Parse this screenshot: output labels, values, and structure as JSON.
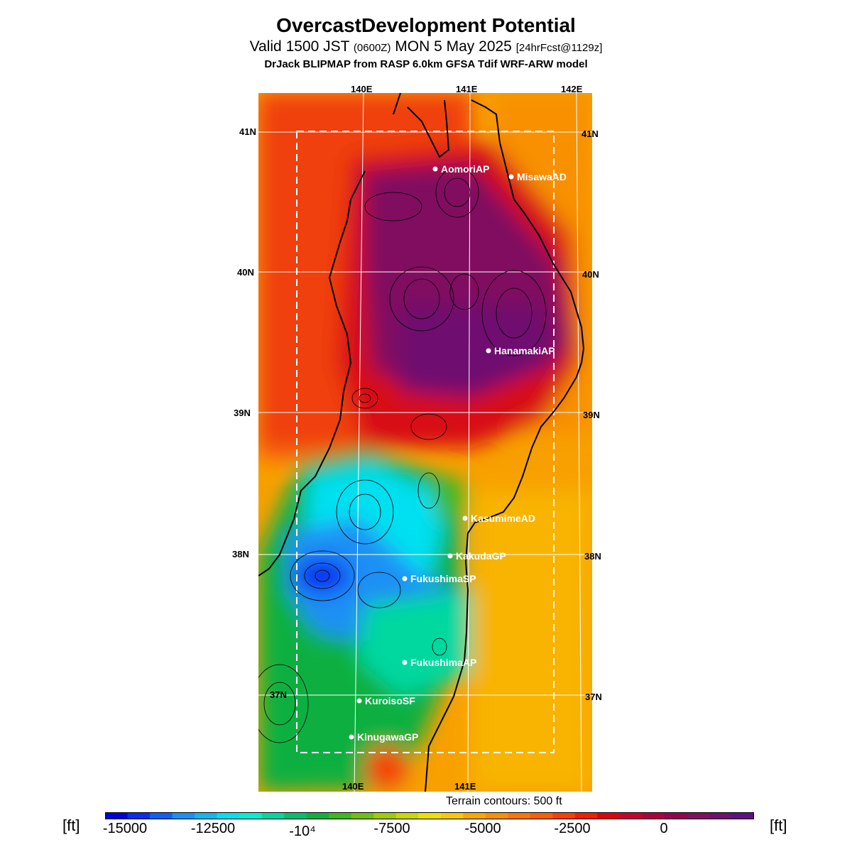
{
  "title": "OvercastDevelopment Potential",
  "subtitle_valid": "Valid 1500 JST",
  "subtitle_zulu": "(0600Z)",
  "subtitle_date": "MON 5 May 2025",
  "subtitle_fcst": "[24hrFcst@1129z]",
  "model_line": "DrJack BLIPMAP from RASP 6.0km GFSA Tdif WRF-ARW model",
  "axis": {
    "top": [
      "140E",
      "141E",
      "142E"
    ],
    "bottom": [
      "140E",
      "141E"
    ],
    "left": [
      "41N",
      "40N",
      "39N",
      "38N",
      "37N"
    ],
    "right": [
      "41N",
      "40N",
      "39N",
      "38N",
      "37N"
    ]
  },
  "stations": [
    {
      "name": "AomoriAP"
    },
    {
      "name": "MisawaAD"
    },
    {
      "name": "HanamakiAP"
    },
    {
      "name": "KasumimeAD"
    },
    {
      "name": "KakudaGP"
    },
    {
      "name": "FukushimaSP"
    },
    {
      "name": "FukushimaAP"
    },
    {
      "name": "KuroisoSF"
    },
    {
      "name": "KinugawaGP"
    }
  ],
  "terrain_note": "Terrain contours: 500 ft",
  "colorbar": {
    "unit": "[ft]",
    "labels": [
      "-15000",
      "-12500",
      "-10⁴",
      "-7500",
      "-5000",
      "-2500",
      "0"
    ],
    "colors": [
      "#0000e0",
      "#0a2ef0",
      "#1060f5",
      "#1a90f5",
      "#10b8f0",
      "#00e0f0",
      "#00f0d0",
      "#00d8a0",
      "#00c070",
      "#10b040",
      "#40b820",
      "#70c010",
      "#a0cc00",
      "#c8d800",
      "#f0e000",
      "#f8c800",
      "#f8a800",
      "#f89000",
      "#f87800",
      "#f86000",
      "#f84000",
      "#f02000",
      "#e00010",
      "#c80030",
      "#b00040",
      "#980050",
      "#801060",
      "#701070",
      "#601080"
    ]
  }
}
